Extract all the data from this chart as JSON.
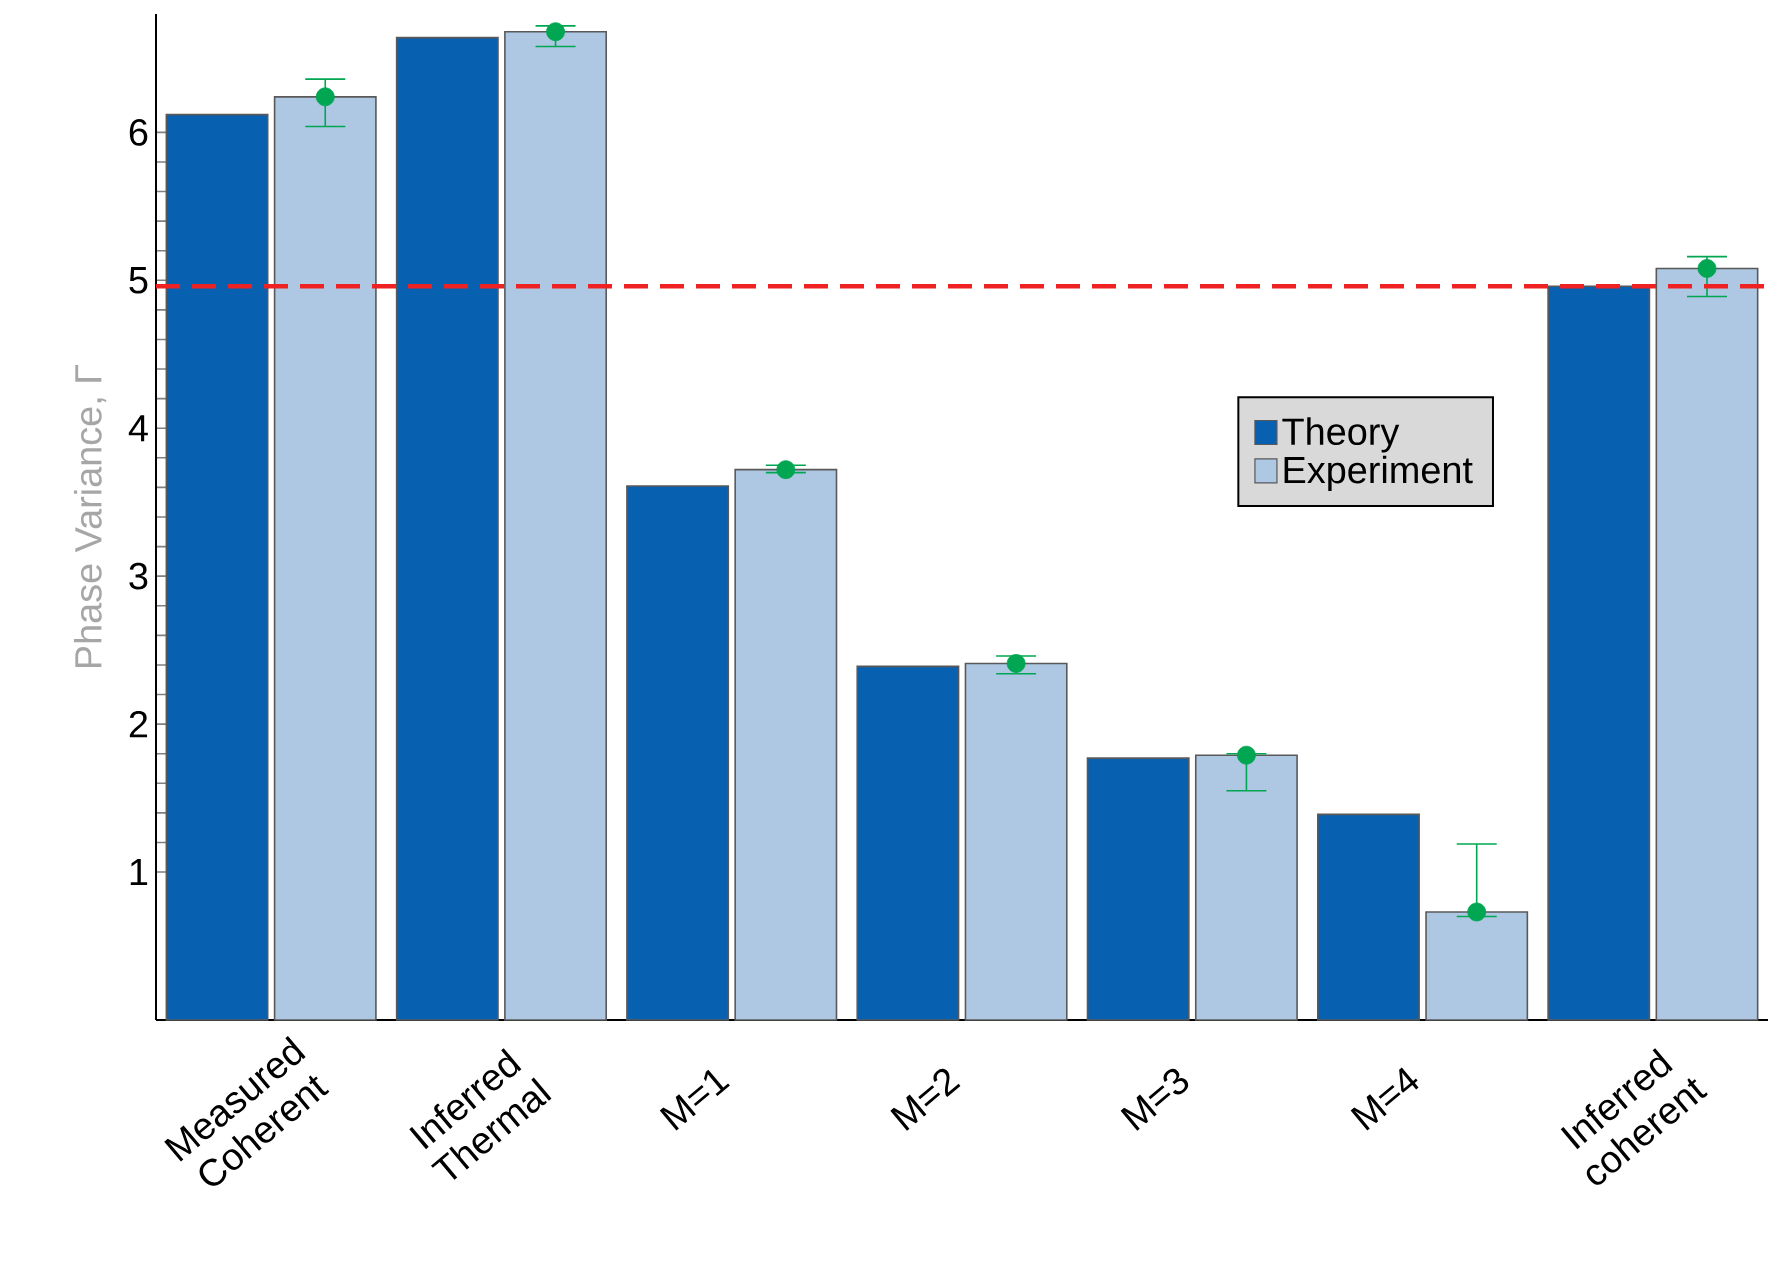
{
  "chart_data": {
    "type": "bar",
    "ylabel": "Phase Variance, Γ",
    "categories": [
      "Measured Coherent",
      "Inferred Thermal",
      "M=1",
      "M=2",
      "M=3",
      "M=4",
      "Inferred coherent"
    ],
    "series": [
      {
        "name": "Theory",
        "color": "#0860b0",
        "values": [
          6.12,
          6.64,
          3.61,
          2.39,
          1.77,
          1.39,
          4.96
        ]
      },
      {
        "name": "Experiment",
        "color": "#aec8e4",
        "values": [
          6.24,
          6.68,
          3.72,
          2.41,
          1.79,
          0.73,
          5.08
        ]
      },
      {
        "type": "scatter",
        "color": "#00a651",
        "x": [
          "Measured Coherent",
          "Inferred Thermal",
          "M=1",
          "M=2",
          "M=3",
          "M=4",
          "Inferred coherent"
        ],
        "values": [
          6.24,
          6.68,
          3.72,
          2.41,
          1.79,
          0.73,
          5.08
        ],
        "errors": [
          [
            6.04,
            6.36
          ],
          [
            6.58,
            6.72
          ],
          [
            3.7,
            3.75
          ],
          [
            2.34,
            2.46
          ],
          [
            1.55,
            1.8
          ],
          [
            0.7,
            1.19
          ],
          [
            4.89,
            5.16
          ]
        ]
      }
    ],
    "ylim": [
      0,
      6.8
    ],
    "yticks": [
      1,
      2,
      3,
      4,
      5,
      6
    ],
    "ref_lines": [
      {
        "axis": "y",
        "value": 4.96,
        "color": "#ee2222",
        "line_style": "dashed"
      }
    ],
    "legend": "center right",
    "grid": false,
    "marker": "circle"
  }
}
